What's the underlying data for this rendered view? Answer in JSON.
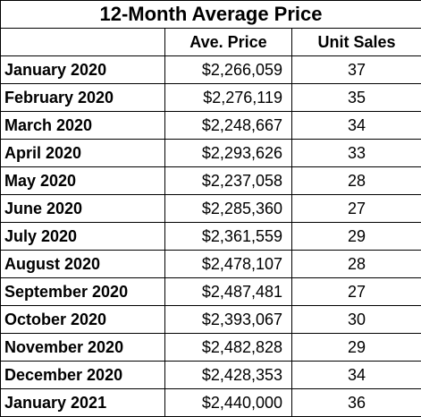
{
  "table": {
    "title": "12-Month Average Price",
    "headers": {
      "month": "",
      "price": "Ave. Price",
      "sales": "Unit Sales"
    },
    "rows": [
      {
        "month": "January 2020",
        "price": "$2,266,059",
        "sales": "37"
      },
      {
        "month": "February 2020",
        "price": "$2,276,119",
        "sales": "35"
      },
      {
        "month": "March 2020",
        "price": "$2,248,667",
        "sales": "34"
      },
      {
        "month": "April 2020",
        "price": "$2,293,626",
        "sales": "33"
      },
      {
        "month": "May 2020",
        "price": "$2,237,058",
        "sales": "28"
      },
      {
        "month": "June 2020",
        "price": "$2,285,360",
        "sales": "27"
      },
      {
        "month": "July 2020",
        "price": "$2,361,559",
        "sales": "29"
      },
      {
        "month": "August 2020",
        "price": "$2,478,107",
        "sales": "28"
      },
      {
        "month": "September 2020",
        "price": "$2,487,481",
        "sales": "27"
      },
      {
        "month": "October 2020",
        "price": "$2,393,067",
        "sales": "30"
      },
      {
        "month": "November 2020",
        "price": "$2,482,828",
        "sales": "29"
      },
      {
        "month": "December 2020",
        "price": "$2,428,353",
        "sales": "34"
      },
      {
        "month": "January 2021",
        "price": "$2,440,000",
        "sales": "36"
      }
    ]
  }
}
